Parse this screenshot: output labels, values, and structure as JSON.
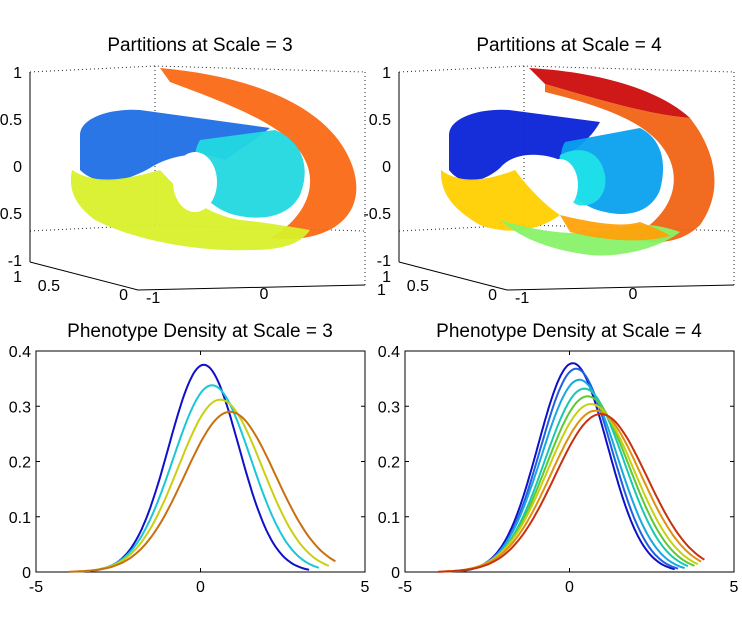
{
  "chart_data": [
    {
      "type": "scatter3d",
      "title": "Partitions at Scale = 3",
      "zticks": [
        "1",
        "0.5",
        "0",
        "-0.5",
        "-1"
      ],
      "yticks": [
        "1",
        "0.5",
        "0"
      ],
      "xticks": [
        "-1",
        "0",
        "1"
      ],
      "xlim": [
        -1,
        1
      ],
      "ylim": [
        0,
        1
      ],
      "zlim": [
        -1,
        1
      ],
      "grid": true,
      "partitions": [
        {
          "label": "1",
          "color": "#1f6fe6"
        },
        {
          "label": "2",
          "color": "#22d8e0"
        },
        {
          "label": "3",
          "color": "#d8f02a"
        },
        {
          "label": "4",
          "color": "#fb6611"
        }
      ]
    },
    {
      "type": "scatter3d",
      "title": "Partitions at Scale = 4",
      "zticks": [
        "1",
        "0.5",
        "0",
        "-0.5",
        "-1"
      ],
      "yticks": [
        "1",
        "0.5",
        "0"
      ],
      "xticks": [
        "-1",
        "0"
      ],
      "xlim": [
        -1,
        1
      ],
      "ylim": [
        0,
        1
      ],
      "zlim": [
        -1,
        1
      ],
      "grid": true,
      "partitions": [
        {
          "label": "1",
          "color": "#0a22d8"
        },
        {
          "label": "2",
          "color": "#0aa0ee"
        },
        {
          "label": "3",
          "color": "#1ee0e8"
        },
        {
          "label": "4",
          "color": "#88f268"
        },
        {
          "label": "5",
          "color": "#ffd000"
        },
        {
          "label": "6",
          "color": "#ffa20a"
        },
        {
          "label": "7",
          "color": "#f06010"
        },
        {
          "label": "8",
          "color": "#cc0c0c"
        }
      ]
    },
    {
      "type": "line",
      "title": "Phenotype Density at Scale = 3",
      "xlim": [
        -5,
        5
      ],
      "ylim": [
        0,
        0.4
      ],
      "xticks": [
        -5,
        0,
        5
      ],
      "yticks": [
        0,
        0.1,
        0.2,
        0.3,
        0.4
      ],
      "series": [
        {
          "color": "#1010c8",
          "mu": 0.1,
          "peak": 0.375,
          "x0": -3.2,
          "x1": 3.3
        },
        {
          "color": "#18c8d8",
          "mu": 0.35,
          "peak": 0.338,
          "x0": -3.5,
          "x1": 3.6
        },
        {
          "color": "#c8d010",
          "mu": 0.6,
          "peak": 0.312,
          "x0": -3.7,
          "x1": 3.9
        },
        {
          "color": "#c87010",
          "mu": 0.9,
          "peak": 0.29,
          "x0": -4.0,
          "x1": 4.1
        }
      ]
    },
    {
      "type": "line",
      "title": "Phenotype Density at Scale = 4",
      "xlim": [
        -5,
        5
      ],
      "ylim": [
        0,
        0.4
      ],
      "xticks": [
        -5,
        0,
        5
      ],
      "yticks": [
        0,
        0.1,
        0.2,
        0.3,
        0.4
      ],
      "series": [
        {
          "color": "#1010c8",
          "mu": 0.1,
          "peak": 0.378,
          "x0": -3.2,
          "x1": 3.2
        },
        {
          "color": "#2060e0",
          "mu": 0.2,
          "peak": 0.368,
          "x0": -3.3,
          "x1": 3.3
        },
        {
          "color": "#18a8e0",
          "mu": 0.3,
          "peak": 0.348,
          "x0": -3.4,
          "x1": 3.5
        },
        {
          "color": "#18c8b0",
          "mu": 0.45,
          "peak": 0.332,
          "x0": -3.5,
          "x1": 3.6
        },
        {
          "color": "#60c830",
          "mu": 0.55,
          "peak": 0.318,
          "x0": -3.6,
          "x1": 3.8
        },
        {
          "color": "#c8d010",
          "mu": 0.65,
          "peak": 0.304,
          "x0": -3.7,
          "x1": 3.9
        },
        {
          "color": "#e09010",
          "mu": 0.8,
          "peak": 0.292,
          "x0": -3.9,
          "x1": 4.0
        },
        {
          "color": "#c83010",
          "mu": 0.95,
          "peak": 0.286,
          "x0": -4.0,
          "x1": 4.1
        }
      ]
    }
  ]
}
